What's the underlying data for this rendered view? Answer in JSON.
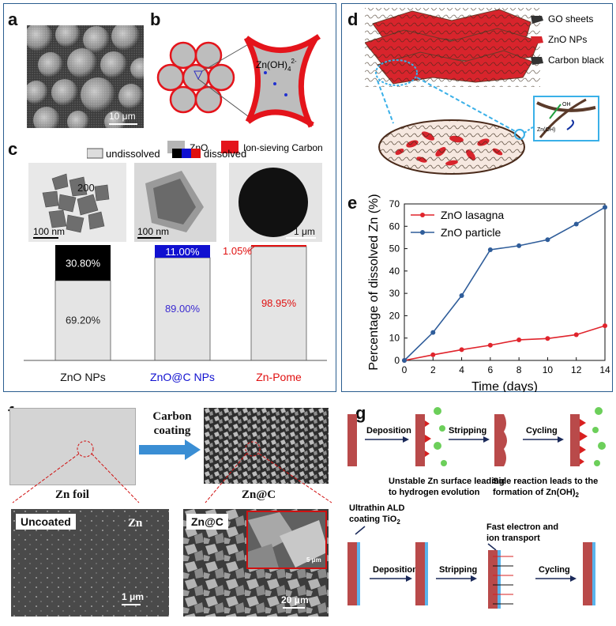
{
  "panel_a": {
    "label": "a",
    "scale": "10 μm"
  },
  "panel_b": {
    "label": "b",
    "ion": "Zn(OH)",
    "ion_sup": "2-",
    "ion_sub": "4",
    "legend_zno": "ZnO",
    "legend_carbon": "Ion-sieving Carbon"
  },
  "panel_c": {
    "label": "c",
    "legend_undissolved": "undissolved",
    "legend_dissolved": "dissolved",
    "scales": [
      "100 nm",
      "100 nm",
      "1 μm"
    ],
    "tem_overlay": "200",
    "bars": [
      {
        "name": "ZnO NPs",
        "dissolved": "30.80%",
        "undissolved": "69.20%",
        "dissolved_frac": 0.308,
        "color": "#000000",
        "ucolor": "#222222"
      },
      {
        "name": "ZnO@C NPs",
        "dissolved": "11.00%",
        "undissolved": "89.00%",
        "dissolved_frac": 0.11,
        "color": "#1010d0",
        "ucolor": "#3a2ad0"
      },
      {
        "name": "Zn-Pome",
        "dissolved": "1.05%",
        "undissolved": "98.95%",
        "dissolved_frac": 0.0105,
        "color": "#e01010",
        "ucolor": "#e01010"
      }
    ]
  },
  "panel_d": {
    "label": "d",
    "go": "GO sheets",
    "zno": "ZnO NPs",
    "cb": "Carbon black",
    "oh": "OH",
    "ion": "Zn(OH)"
  },
  "panel_e": {
    "label": "e"
  },
  "chart_data": {
    "type": "line",
    "xlabel": "Time (days)",
    "ylabel": "Percentage of dissolved Zn (%)",
    "xlim": [
      0,
      14
    ],
    "ylim": [
      0,
      70
    ],
    "xticks": [
      "0",
      "2",
      "4",
      "6",
      "8",
      "10",
      "12",
      "14"
    ],
    "yticks": [
      "0",
      "10",
      "20",
      "30",
      "40",
      "50",
      "60",
      "70"
    ],
    "legend_position": "top-left",
    "series": [
      {
        "name": "ZnO lasagna",
        "color": "#e0242c",
        "x": [
          0,
          2,
          4,
          6,
          8,
          10,
          12,
          14
        ],
        "y": [
          0,
          2.5,
          4.8,
          6.8,
          9.2,
          9.8,
          11.5,
          15.5
        ]
      },
      {
        "name": "ZnO particle",
        "color": "#2f5d9a",
        "x": [
          0,
          2,
          4,
          6,
          8,
          10,
          12,
          14
        ],
        "y": [
          0,
          12.5,
          29,
          49.5,
          51.3,
          54,
          61,
          68.5
        ]
      }
    ]
  },
  "panel_f": {
    "label": "f",
    "arrow_text_1": "Carbon",
    "arrow_text_2": "coating",
    "zn_foil": "Zn foil",
    "znc": "Zn@C",
    "uncoated": "Uncoated",
    "zn": "Zn",
    "znc2": "Zn@C",
    "scale1": "1 μm",
    "scale2": "20 μm",
    "scale3": "5 μm"
  },
  "panel_g": {
    "label": "g",
    "dep": "Deposition",
    "strip": "Stripping",
    "cyc": "Cycling",
    "cap1_l1": "Unstable Zn surface leading",
    "cap1_l2": "to hydrogen evolution",
    "cap2_l1": "Side reaction leads to the",
    "cap2_l2": "formation of Zn(OH)",
    "cap2_sub": "2",
    "ald_l1": "Ultrathin ALD",
    "ald_l2": "coating TiO",
    "ald_sub": "2",
    "fast_l1": "Fast electron and",
    "fast_l2": "ion transport"
  }
}
